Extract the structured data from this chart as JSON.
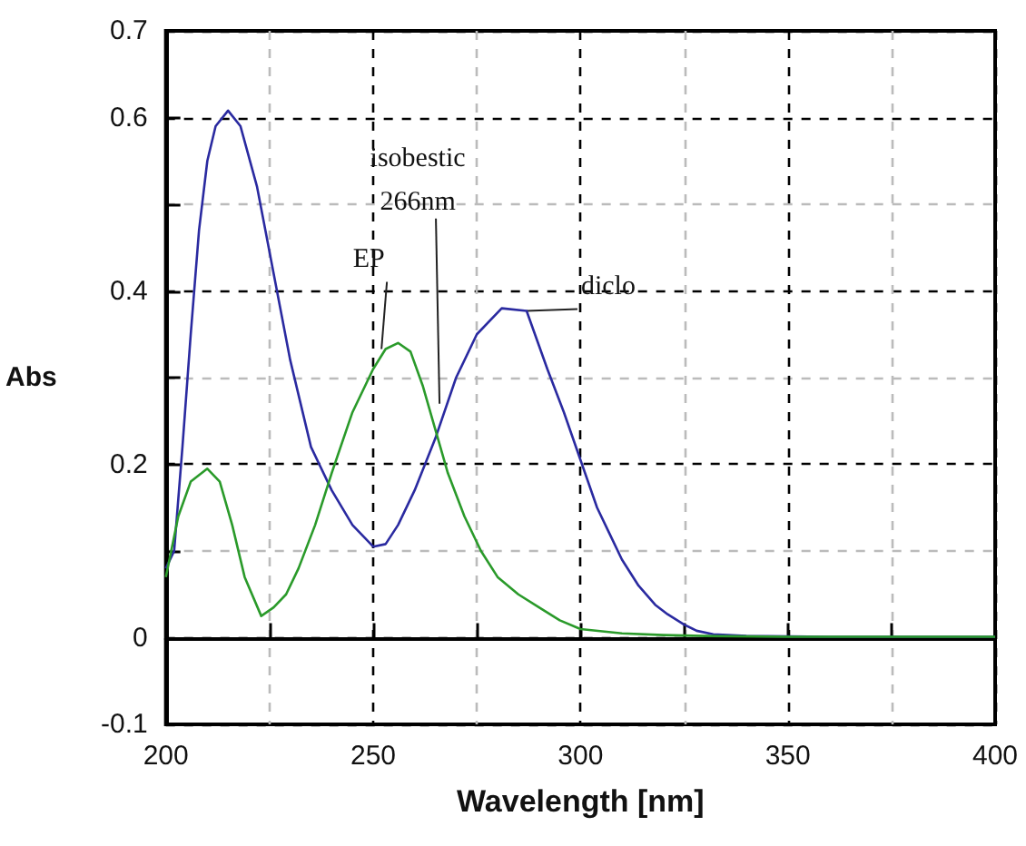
{
  "chart_data": {
    "type": "line",
    "xlabel": "Wavelength [nm]",
    "ylabel": "Abs",
    "xlim": [
      200,
      400
    ],
    "ylim": [
      -0.1,
      0.7
    ],
    "xticks": [
      200,
      {
        "value": 225,
        "label": null
      },
      250,
      {
        "value": 275,
        "label": null
      },
      300,
      {
        "value": 325,
        "label": null
      },
      350,
      {
        "value": 375,
        "label": null
      },
      400
    ],
    "yticks": [
      -0.1,
      0,
      {
        "value": 0.1,
        "label": null
      },
      0.2,
      {
        "value": 0.3,
        "label": null
      },
      0.4,
      {
        "value": 0.5,
        "label": null
      },
      0.6,
      0.7
    ],
    "grid": true,
    "marker": "none",
    "line_style": "solid",
    "series": [
      {
        "color": "#2a2aa0",
        "x": [
          200,
          202,
          204,
          206,
          208,
          210,
          212,
          215,
          218,
          222,
          226,
          230,
          235,
          240,
          245,
          250,
          253,
          256,
          260,
          265,
          270,
          275,
          281,
          287,
          292,
          296,
          300,
          304,
          307,
          310,
          314,
          318,
          321,
          325,
          328,
          332,
          340,
          360,
          400
        ],
        "values": [
          0.08,
          0.1,
          0.22,
          0.35,
          0.47,
          0.55,
          0.59,
          0.608,
          0.59,
          0.52,
          0.42,
          0.32,
          0.22,
          0.17,
          0.13,
          0.105,
          0.108,
          0.13,
          0.17,
          0.23,
          0.3,
          0.35,
          0.38,
          0.377,
          0.31,
          0.26,
          0.205,
          0.15,
          0.12,
          0.09,
          0.06,
          0.038,
          0.027,
          0.015,
          0.008,
          0.004,
          0.002,
          0.001,
          0.001
        ]
      },
      {
        "color": "#2a9a2a",
        "x": [
          200,
          203,
          206,
          210,
          213,
          216,
          219,
          223,
          226,
          229,
          232,
          236,
          240,
          245,
          250,
          253,
          256,
          259,
          262,
          265,
          268,
          272,
          276,
          280,
          285,
          290,
          295,
          300,
          310,
          320,
          330,
          350,
          400
        ],
        "values": [
          0.07,
          0.14,
          0.18,
          0.195,
          0.18,
          0.13,
          0.07,
          0.025,
          0.035,
          0.05,
          0.08,
          0.13,
          0.19,
          0.26,
          0.31,
          0.333,
          0.34,
          0.33,
          0.29,
          0.24,
          0.19,
          0.14,
          0.1,
          0.07,
          0.05,
          0.035,
          0.02,
          0.01,
          0.005,
          0.003,
          0.002,
          0.001,
          0.001
        ]
      }
    ],
    "annotations": [
      {
        "text": "EP",
        "x": 252,
        "y": 0.333
      },
      {
        "text": "isobestic\n266nm",
        "x": 266,
        "y": 0.27
      },
      {
        "text": "diclo",
        "x": 287,
        "y": 0.377
      }
    ]
  }
}
